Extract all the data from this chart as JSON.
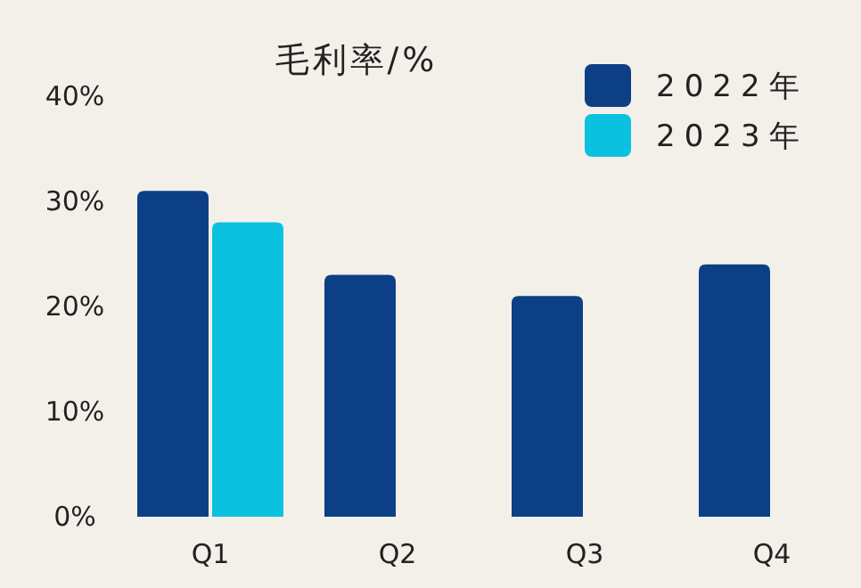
{
  "chart_data": {
    "type": "bar",
    "title": "毛利率/%",
    "categories": [
      "Q1",
      "Q2",
      "Q3",
      "Q4"
    ],
    "series": [
      {
        "name": "2022年",
        "color": "#0d3f86",
        "values": [
          31,
          23,
          21,
          24
        ]
      },
      {
        "name": "2023年",
        "color": "#0ac2e0",
        "values": [
          28,
          null,
          null,
          null
        ]
      }
    ],
    "ylim": [
      0,
      40
    ],
    "yticks": [
      {
        "value": 0,
        "label": "0%"
      },
      {
        "value": 10,
        "label": "10%"
      },
      {
        "value": 20,
        "label": "20%"
      },
      {
        "value": 30,
        "label": "30%"
      },
      {
        "value": 40,
        "label": "40%"
      }
    ],
    "legend": "top right"
  }
}
